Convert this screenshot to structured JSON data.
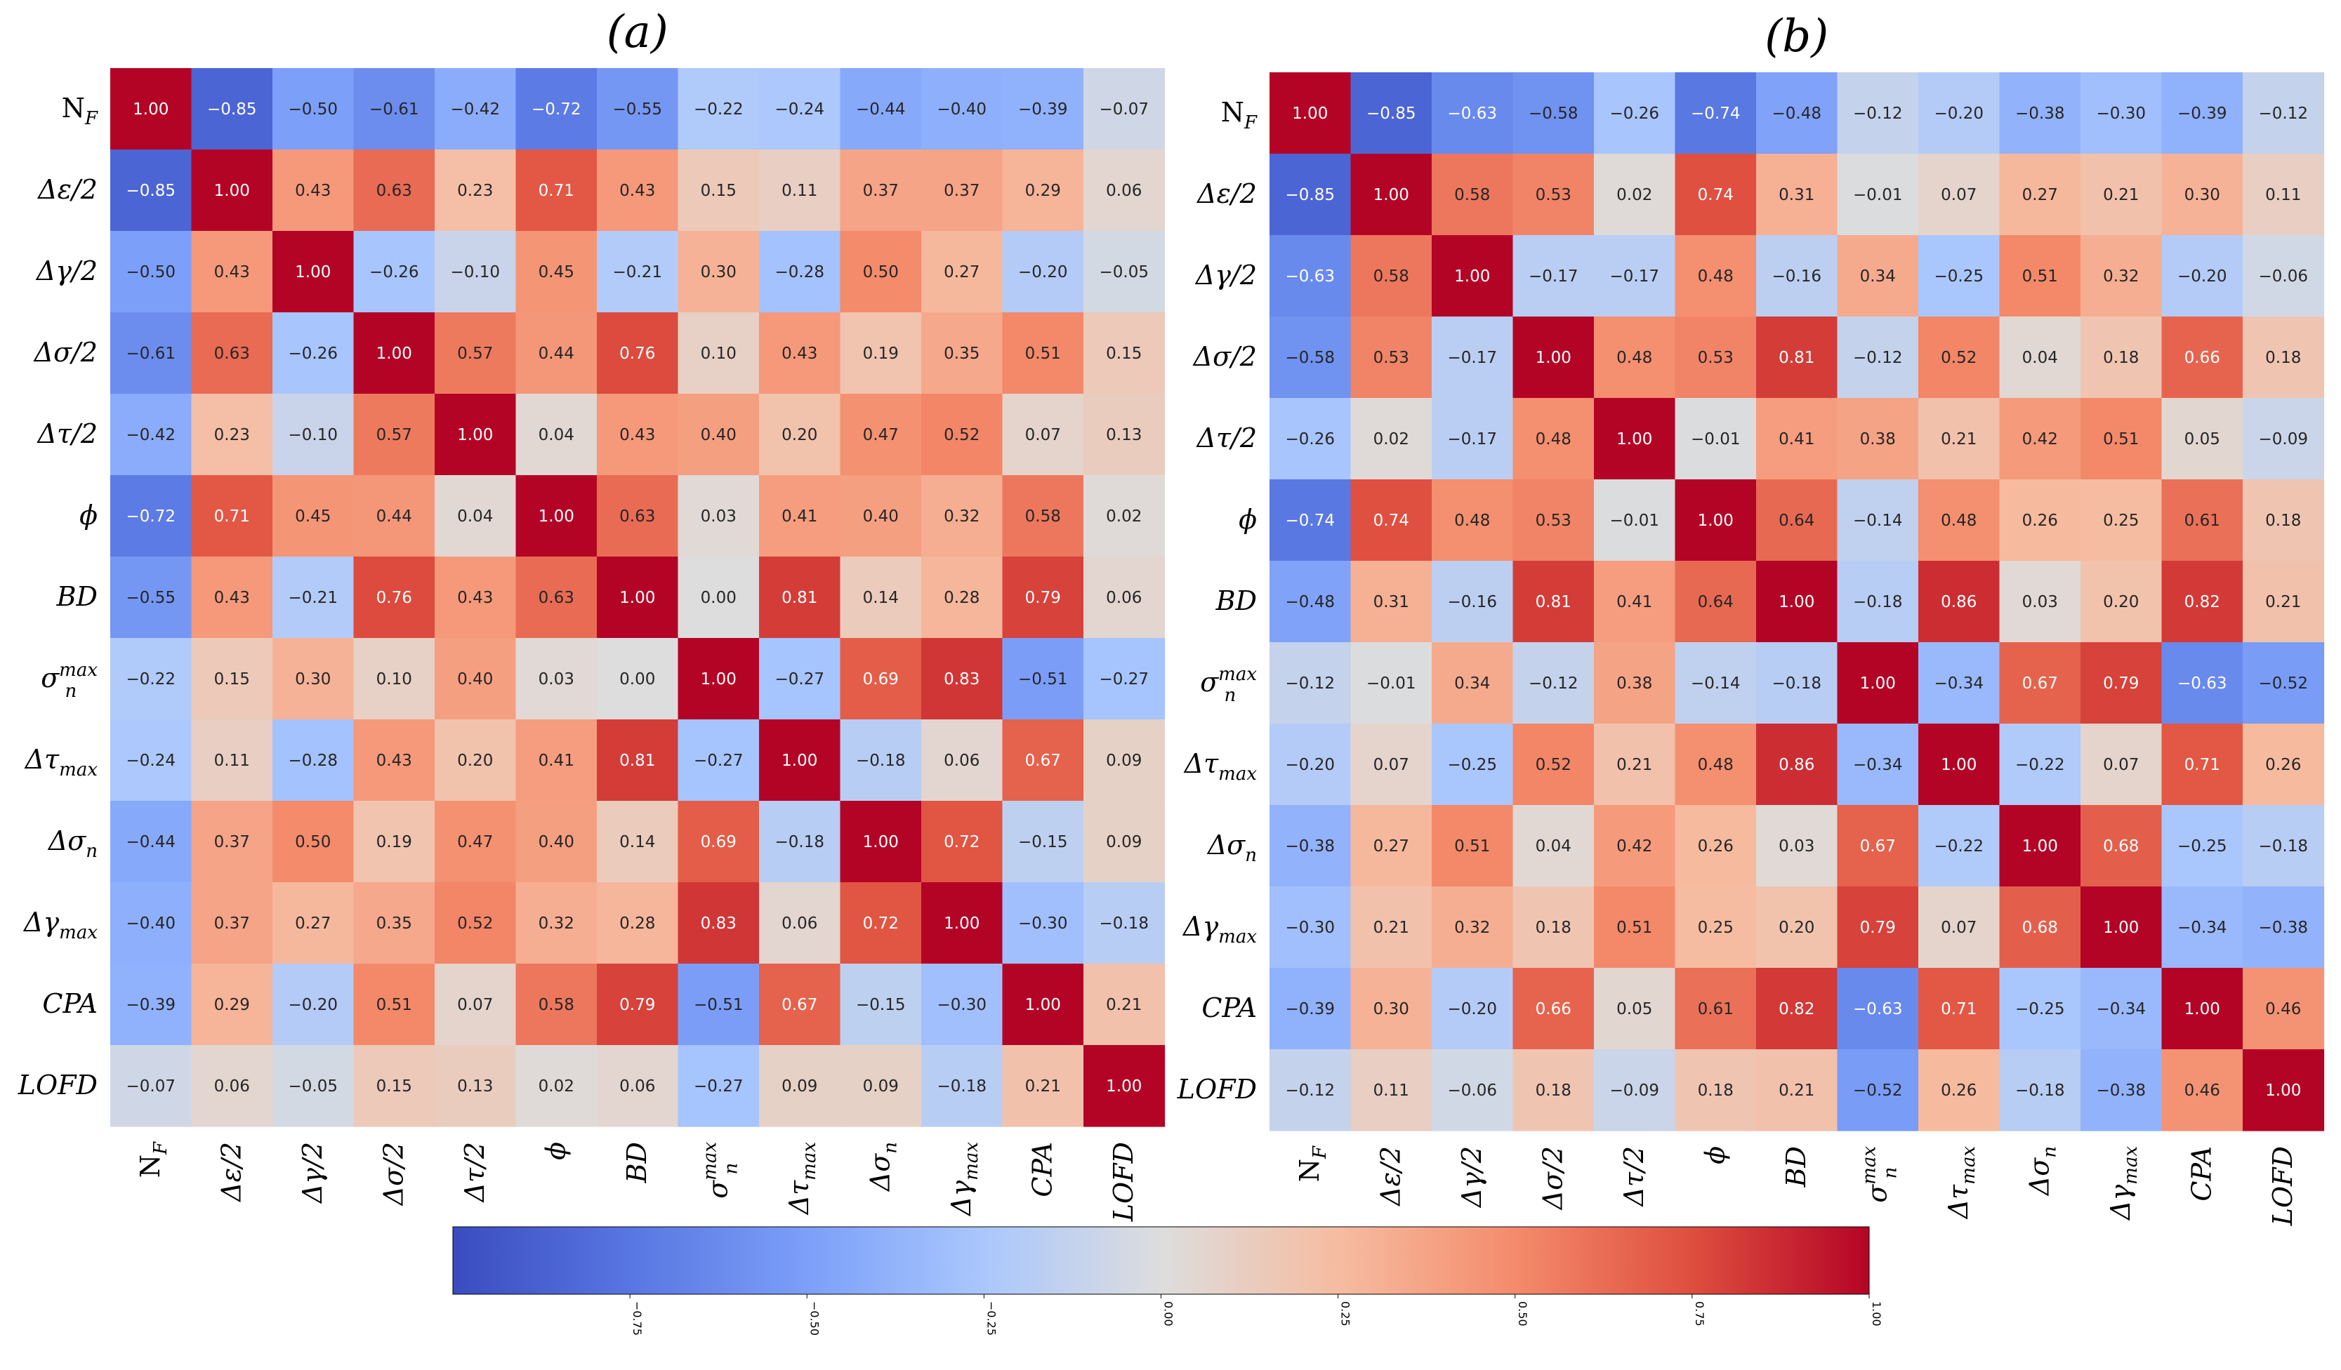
{
  "chart_data": [
    {
      "type": "heatmap",
      "title": "(a)",
      "row_labels": [
        "N_F",
        "Δε/2",
        "Δγ/2",
        "Δσ/2",
        "Δτ/2",
        "ϕ",
        "BD",
        "σ_n^max",
        "Δτ_max",
        "Δσ_n",
        "Δγ_max",
        "CPA",
        "LOFD"
      ],
      "col_labels": [
        "N_F",
        "Δε/2",
        "Δγ/2",
        "Δσ/2",
        "Δτ/2",
        "ϕ",
        "BD",
        "σ_n^max",
        "Δτ_max",
        "Δσ_n",
        "Δγ_max",
        "CPA",
        "LOFD"
      ],
      "values": [
        [
          1.0,
          -0.85,
          -0.5,
          -0.61,
          -0.42,
          -0.72,
          -0.55,
          -0.22,
          -0.24,
          -0.44,
          -0.4,
          -0.39,
          -0.07
        ],
        [
          -0.85,
          1.0,
          0.43,
          0.63,
          0.23,
          0.71,
          0.43,
          0.15,
          0.11,
          0.37,
          0.37,
          0.29,
          0.06
        ],
        [
          -0.5,
          0.43,
          1.0,
          -0.26,
          -0.1,
          0.45,
          -0.21,
          0.3,
          -0.28,
          0.5,
          0.27,
          -0.2,
          -0.05
        ],
        [
          -0.61,
          0.63,
          -0.26,
          1.0,
          0.57,
          0.44,
          0.76,
          0.1,
          0.43,
          0.19,
          0.35,
          0.51,
          0.15
        ],
        [
          -0.42,
          0.23,
          -0.1,
          0.57,
          1.0,
          0.04,
          0.43,
          0.4,
          0.2,
          0.47,
          0.52,
          0.07,
          0.13
        ],
        [
          -0.72,
          0.71,
          0.45,
          0.44,
          0.04,
          1.0,
          0.63,
          0.03,
          0.41,
          0.4,
          0.32,
          0.58,
          0.02
        ],
        [
          -0.55,
          0.43,
          -0.21,
          0.76,
          0.43,
          0.63,
          1.0,
          0.0,
          0.81,
          0.14,
          0.28,
          0.79,
          0.06
        ],
        [
          -0.22,
          0.15,
          0.3,
          0.1,
          0.4,
          0.03,
          0.0,
          1.0,
          -0.27,
          0.69,
          0.83,
          -0.51,
          -0.27
        ],
        [
          -0.24,
          0.11,
          -0.28,
          0.43,
          0.2,
          0.41,
          0.81,
          -0.27,
          1.0,
          -0.18,
          0.06,
          0.67,
          0.09
        ],
        [
          -0.44,
          0.37,
          0.5,
          0.19,
          0.47,
          0.4,
          0.14,
          0.69,
          -0.18,
          1.0,
          0.72,
          -0.15,
          0.09
        ],
        [
          -0.4,
          0.37,
          0.27,
          0.35,
          0.52,
          0.32,
          0.28,
          0.83,
          0.06,
          0.72,
          1.0,
          -0.3,
          -0.18
        ],
        [
          -0.39,
          0.29,
          -0.2,
          0.51,
          0.07,
          0.58,
          0.79,
          -0.51,
          0.67,
          -0.15,
          -0.3,
          1.0,
          0.21
        ],
        [
          -0.07,
          0.06,
          -0.05,
          0.15,
          0.13,
          0.02,
          0.06,
          -0.27,
          0.09,
          0.09,
          -0.18,
          0.21,
          1.0
        ]
      ]
    },
    {
      "type": "heatmap",
      "title": "(b)",
      "row_labels": [
        "N_F",
        "Δε/2",
        "Δγ/2",
        "Δσ/2",
        "Δτ/2",
        "ϕ",
        "BD",
        "σ_n^max",
        "Δτ_max",
        "Δσ_n",
        "Δγ_max",
        "CPA",
        "LOFD"
      ],
      "col_labels": [
        "N_F",
        "Δε/2",
        "Δγ/2",
        "Δσ/2",
        "Δτ/2",
        "ϕ",
        "BD",
        "σ_n^max",
        "Δτ_max",
        "Δσ_n",
        "Δγ_max",
        "CPA",
        "LOFD"
      ],
      "values": [
        [
          1.0,
          -0.85,
          -0.63,
          -0.58,
          -0.26,
          -0.74,
          -0.48,
          -0.12,
          -0.2,
          -0.38,
          -0.3,
          -0.39,
          -0.12
        ],
        [
          -0.85,
          1.0,
          0.58,
          0.53,
          0.02,
          0.74,
          0.31,
          -0.01,
          0.07,
          0.27,
          0.21,
          0.3,
          0.11
        ],
        [
          -0.63,
          0.58,
          1.0,
          -0.17,
          -0.17,
          0.48,
          -0.16,
          0.34,
          -0.25,
          0.51,
          0.32,
          -0.2,
          -0.06
        ],
        [
          -0.58,
          0.53,
          -0.17,
          1.0,
          0.48,
          0.53,
          0.81,
          -0.12,
          0.52,
          0.04,
          0.18,
          0.66,
          0.18
        ],
        [
          -0.26,
          0.02,
          -0.17,
          0.48,
          1.0,
          -0.01,
          0.41,
          0.38,
          0.21,
          0.42,
          0.51,
          0.05,
          -0.09
        ],
        [
          -0.74,
          0.74,
          0.48,
          0.53,
          -0.01,
          1.0,
          0.64,
          -0.14,
          0.48,
          0.26,
          0.25,
          0.61,
          0.18
        ],
        [
          -0.48,
          0.31,
          -0.16,
          0.81,
          0.41,
          0.64,
          1.0,
          -0.18,
          0.86,
          0.03,
          0.2,
          0.82,
          0.21
        ],
        [
          -0.12,
          -0.01,
          0.34,
          -0.12,
          0.38,
          -0.14,
          -0.18,
          1.0,
          -0.34,
          0.67,
          0.79,
          -0.63,
          -0.52
        ],
        [
          -0.2,
          0.07,
          -0.25,
          0.52,
          0.21,
          0.48,
          0.86,
          -0.34,
          1.0,
          -0.22,
          0.07,
          0.71,
          0.26
        ],
        [
          -0.38,
          0.27,
          0.51,
          0.04,
          0.42,
          0.26,
          0.03,
          0.67,
          -0.22,
          1.0,
          0.68,
          -0.25,
          -0.18
        ],
        [
          -0.3,
          0.21,
          0.32,
          0.18,
          0.51,
          0.25,
          0.2,
          0.79,
          0.07,
          0.68,
          1.0,
          -0.34,
          -0.38
        ],
        [
          -0.39,
          0.3,
          -0.2,
          0.66,
          0.05,
          0.61,
          0.82,
          -0.63,
          0.71,
          -0.25,
          -0.34,
          1.0,
          0.46
        ],
        [
          -0.12,
          0.11,
          -0.06,
          0.18,
          -0.09,
          0.18,
          0.21,
          -0.52,
          0.26,
          -0.18,
          -0.38,
          0.46,
          1.0
        ]
      ]
    }
  ],
  "colorbar": {
    "cmap": "coolwarm",
    "vmin": -1.0,
    "vmax": 1.0,
    "ticks": [
      -0.75,
      -0.5,
      -0.25,
      0.0,
      0.25,
      0.5,
      0.75,
      1.0
    ],
    "tick_labels": [
      "−0.75",
      "−0.50",
      "−0.25",
      "0.00",
      "0.25",
      "0.50",
      "0.75",
      "1.00"
    ]
  }
}
